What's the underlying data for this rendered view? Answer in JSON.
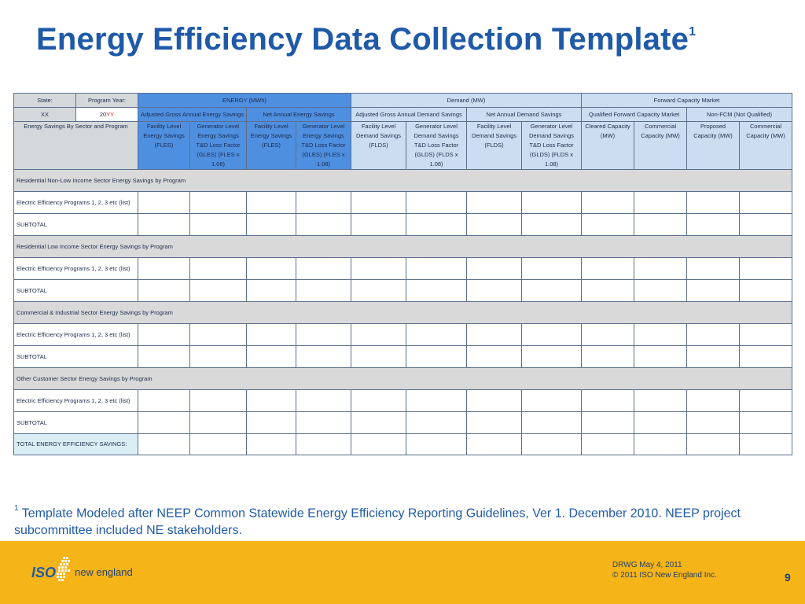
{
  "title": "Energy Efficiency Data Collection Template",
  "title_sup": "1",
  "table": {
    "row1": {
      "state_label": "State:",
      "program_year_label": "Program Year:",
      "energy": "ENERGY (MWh)",
      "demand": "Demand (MW)",
      "fcm": "Forward Capacity Market"
    },
    "row2": {
      "state_value": "XX",
      "year_prefix": "20",
      "year_suffix": "YY",
      "adj_gross_energy": "Adjusted Gross Annual Energy Savings",
      "net_energy": "Net Annual Energy Savings",
      "adj_gross_demand": "Adjusted Gross Annual Demand Savings",
      "net_demand": "Net Annual Demand Savings",
      "qualified_fcm": "Qualified Forward Capacity Market",
      "non_fcm": "Non-FCM (Not Qualified)"
    },
    "row3": {
      "sector_label": "Energy Savings By Sector and Program",
      "cols": [
        "Facility Level Energy Savings (FLES)",
        "Generator Level Energy Savings T&D Loss Factor (GLES) (FLES x 1.08)",
        "Facility Level Energy Savings (FLES)",
        "Generator Level Energy Savings T&D Loss Factor (GLES) (FLES x 1.08)",
        "Facility Level Demand Savings (FLDS)",
        "Generator Level Demand Savings T&D Loss Factor (GLDS) (FLDS x 1.08)",
        "Facility Level Demand Savings (FLDS)",
        "Generator Level Demand Savings T&D Loss Factor (GLDS) (FLDS x 1.08)",
        "Cleared Capacity (MW)",
        "Commercial Capacity (MW)",
        "Proposed Capacity (MW)",
        "Commercial Capacity (MW)"
      ]
    },
    "sections": [
      {
        "header": "Residential Non-Low Income Sector Energy Savings by Program",
        "program": "Electric Efficiency Programs 1, 2, 3 etc (list)",
        "subtotal": "SUBTOTAL"
      },
      {
        "header": "Residential Low Income Sector Energy Savings by Program",
        "program": "Electric Efficiency Programs 1, 2, 3 etc (list)",
        "subtotal": "SUBTOTAL"
      },
      {
        "header": "Commercial & Industrial Sector Energy Savings by Program",
        "program": "Electric Efficiency Programs 1, 2, 3 etc (list)",
        "subtotal": "SUBTOTAL"
      },
      {
        "header": "Other Customer Sector Energy Savings by Program",
        "program": "Electric Efficiency Programs 1, 2, 3 etc (list)",
        "subtotal": "SUBTOTAL"
      }
    ],
    "total_label": "TOTAL ENERGY EFFICIENCY SAVINGS:"
  },
  "footnote": {
    "marker": "1",
    "text": "Template Modeled after NEEP Common Statewide Energy Efficiency Reporting Guidelines, Ver 1. December 2010.  NEEP project subcommittee included NE stakeholders."
  },
  "footer": {
    "logo_iso": "ISO",
    "logo_ne": "new england",
    "meta_line1": "DRWG May 4, 2011",
    "meta_line2": "© 2011 ISO New England Inc.",
    "page_number": "9"
  },
  "colors": {
    "title": "#1f5aa8",
    "header_blue": "#4f8fe0",
    "header_light_blue": "#cdddf1",
    "header_grey": "#d5d8db",
    "footer_gold": "#f5b417"
  }
}
